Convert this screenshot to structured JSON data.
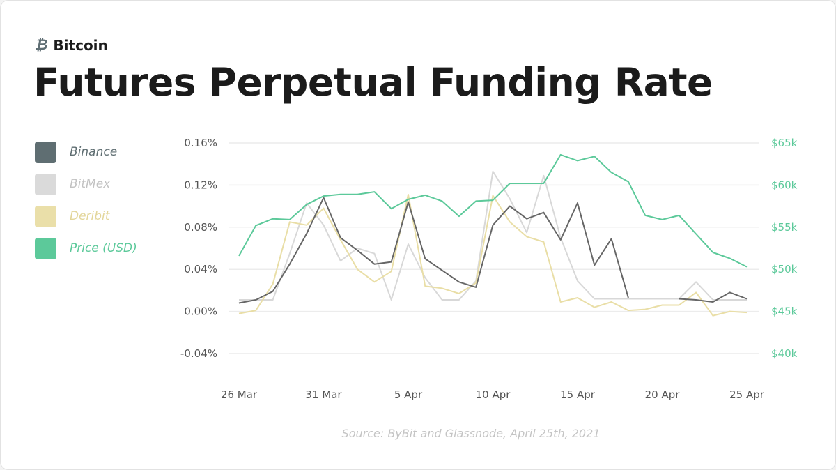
{
  "header": {
    "kicker": "Bitcoin",
    "kicker_icon": "bitcoin-icon",
    "title": "Futures Perpetual Funding Rate"
  },
  "source": "Source: ByBit and Glassnode, April 25th, 2021",
  "chart_data": {
    "type": "line",
    "title": "Futures Perpetual Funding Rate",
    "x": [
      "26 Mar",
      "27 Mar",
      "28 Mar",
      "29 Mar",
      "30 Mar",
      "31 Mar",
      "1 Apr",
      "2 Apr",
      "3 Apr",
      "4 Apr",
      "5 Apr",
      "6 Apr",
      "7 Apr",
      "8 Apr",
      "9 Apr",
      "10 Apr",
      "11 Apr",
      "12 Apr",
      "13 Apr",
      "14 Apr",
      "15 Apr",
      "16 Apr",
      "17 Apr",
      "18 Apr",
      "19 Apr",
      "20 Apr",
      "21 Apr",
      "22 Apr",
      "23 Apr",
      "24 Apr",
      "25 Apr"
    ],
    "x_ticks": [
      "26 Mar",
      "31 Mar",
      "5 Apr",
      "10 Apr",
      "15 Apr",
      "20 Apr",
      "25 Apr"
    ],
    "y_left": {
      "ticks": [
        "0.16%",
        "0.12%",
        "0.08%",
        "0.04%",
        "0.00%",
        "-0.04%"
      ],
      "range": [
        -0.04,
        0.16
      ],
      "unit": "%"
    },
    "y_right": {
      "ticks": [
        "$65k",
        "$60k",
        "$55k",
        "$50k",
        "$45k",
        "$40k"
      ],
      "range": [
        40,
        65
      ],
      "unit": "k USD",
      "color": "#5cc99a"
    },
    "grid": true,
    "legend_placement": "left",
    "series": [
      {
        "name": "Binance",
        "axis": "left",
        "color": "#666666",
        "legend_color": "#5f6e72",
        "values": [
          0.008,
          0.011,
          0.019,
          0.045,
          0.074,
          0.108,
          0.07,
          0.058,
          0.045,
          0.047,
          0.104,
          0.05,
          0.039,
          0.028,
          0.023,
          0.082,
          0.1,
          0.088,
          0.094,
          0.068,
          0.103,
          0.044,
          0.069,
          0.013,
          null,
          null,
          0.012,
          0.011,
          0.009,
          0.018,
          0.012
        ]
      },
      {
        "name": "BitMex",
        "axis": "left",
        "color": "#d8d8d8",
        "legend_color": "#c2c2c2",
        "values": [
          0.011,
          0.011,
          0.011,
          0.055,
          0.103,
          0.082,
          0.048,
          0.06,
          0.055,
          0.011,
          0.064,
          0.032,
          0.011,
          0.011,
          0.029,
          0.133,
          0.107,
          0.075,
          0.129,
          0.07,
          0.029,
          0.012,
          0.012,
          0.012,
          0.012,
          0.012,
          0.012,
          0.028,
          0.011,
          0.011,
          0.011
        ]
      },
      {
        "name": "Deribit",
        "axis": "left",
        "color": "#e9dea6",
        "legend_color": "#e3d69a",
        "values": [
          -0.002,
          0.001,
          0.026,
          0.085,
          0.082,
          0.098,
          0.068,
          0.04,
          0.028,
          0.038,
          0.111,
          0.024,
          0.022,
          0.017,
          0.027,
          0.11,
          0.085,
          0.071,
          0.066,
          0.009,
          0.013,
          0.004,
          0.009,
          0.001,
          0.002,
          0.006,
          0.006,
          0.018,
          -0.004,
          0.0,
          -0.001
        ]
      },
      {
        "name": "Price (USD)",
        "axis": "right",
        "color": "#5cc99a",
        "legend_color": "#5cc99a",
        "values": [
          51.6,
          55.2,
          56.0,
          55.9,
          57.7,
          58.7,
          58.9,
          58.9,
          59.2,
          57.2,
          58.3,
          58.8,
          58.1,
          56.3,
          58.1,
          58.2,
          60.2,
          60.2,
          60.2,
          63.6,
          62.9,
          63.4,
          61.5,
          60.4,
          56.4,
          55.9,
          56.4,
          54.2,
          52.0,
          51.3,
          50.3
        ]
      }
    ]
  }
}
